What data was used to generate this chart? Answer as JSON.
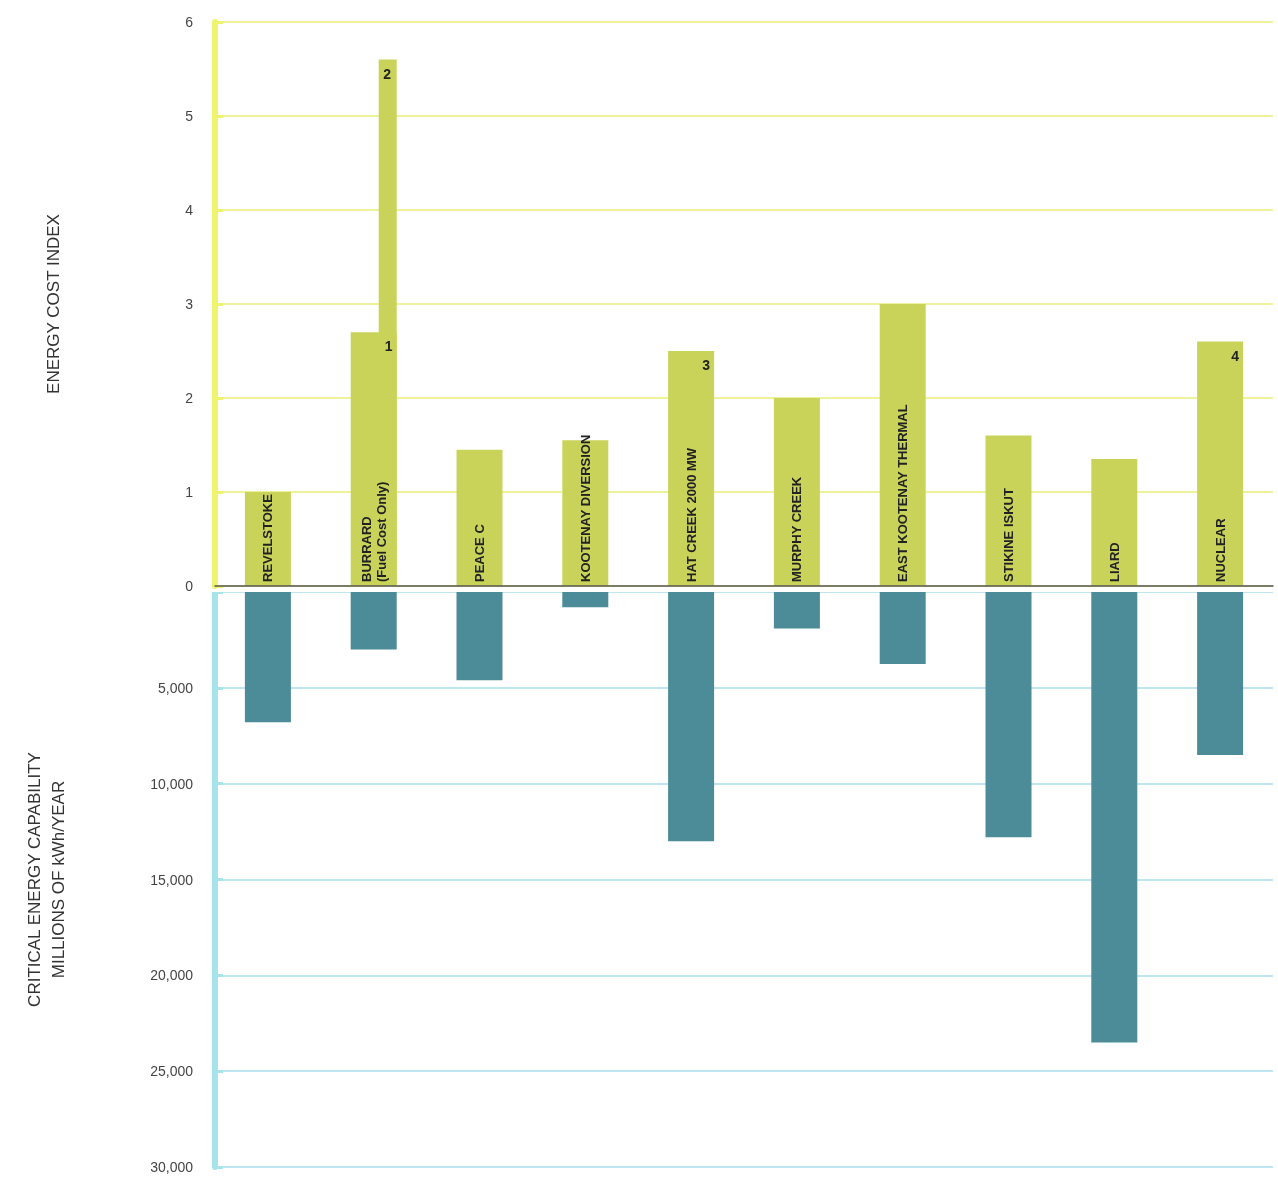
{
  "chart_data": [
    {
      "type": "bar",
      "ylabel": "ENERGY COST INDEX",
      "categories": [
        "REVELSTOKE",
        "BURRARD\n(Fuel Cost Only)",
        "PEACE C",
        "KOOTENAY DIVERSION",
        "HAT CREEK 2000 MW",
        "MURPHY CREEK",
        "EAST KOOTENAY THERMAL",
        "STIKINE ISKUT",
        "LIARD",
        "NUCLEAR"
      ],
      "series": [
        {
          "color": "#c9d35a",
          "values": [
            1.0,
            2.7,
            1.45,
            1.55,
            2.5,
            2.0,
            3.0,
            1.6,
            1.35,
            2.6
          ]
        },
        {
          "color": "#c9d35a",
          "x": [
            "BURRARD\n(Fuel Cost Only)"
          ],
          "values": [
            5.6
          ]
        }
      ],
      "ylim": [
        0,
        6
      ],
      "yticks": [
        0,
        1,
        2,
        3,
        4,
        5,
        6
      ],
      "annotations": [
        {
          "text": "1",
          "x": "BURRARD\n(Fuel Cost Only)",
          "y": 2.7
        },
        {
          "text": "2",
          "x": "BURRARD\n(Fuel Cost Only)",
          "y": 5.6
        },
        {
          "text": "3",
          "x": "HAT CREEK 2000 MW",
          "y": 2.5
        },
        {
          "text": "4",
          "x": "NUCLEAR",
          "y": 2.6
        }
      ],
      "grid": "y"
    },
    {
      "type": "bar",
      "ylabel": "CRITICAL ENERGY CAPABILITY\nMILLIONS OF kWh/YEAR",
      "categories": [
        null,
        null,
        null,
        null,
        null,
        null,
        null,
        null,
        null,
        null
      ],
      "series": [
        {
          "color": "#4b8c98",
          "values": [
            6800,
            3000,
            4600,
            800,
            13000,
            1900,
            3750,
            12800,
            23500,
            8500
          ]
        }
      ],
      "ylim": [
        30000,
        0
      ],
      "yticks": [
        {
          "value": 0,
          "label": null
        },
        {
          "value": 5000,
          "label": "5,000"
        },
        {
          "value": 10000,
          "label": "10,000"
        },
        {
          "value": 15000,
          "label": "15,000"
        },
        {
          "value": 20000,
          "label": "20,000"
        },
        {
          "value": 25000,
          "label": "25,000"
        },
        {
          "value": 30000,
          "label": "30,000"
        }
      ],
      "tick_labels": "y",
      "grid": "y"
    }
  ]
}
